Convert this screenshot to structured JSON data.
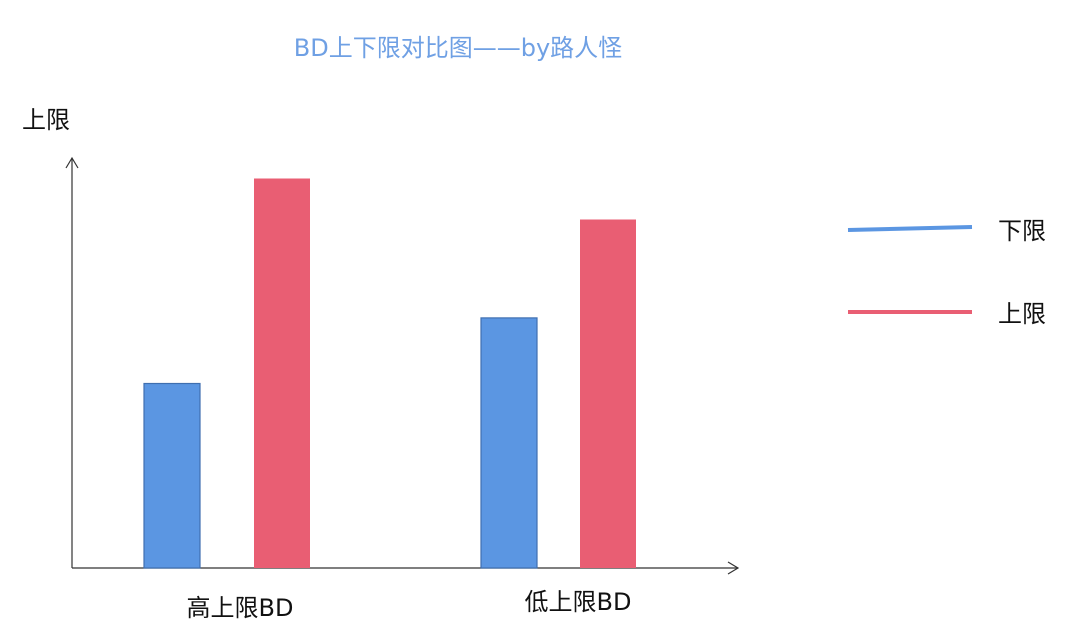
{
  "chart_data": {
    "type": "bar",
    "title": "BD上下限对比图——by路人怪",
    "xlabel": "",
    "ylabel": "上限",
    "categories": [
      "高上限BD",
      "低上限BD"
    ],
    "series": [
      {
        "name": "下限",
        "color": "#5b96e2",
        "values": [
          0.45,
          0.61
        ]
      },
      {
        "name": "上限",
        "color": "#e95e73",
        "values": [
          0.95,
          0.85
        ]
      }
    ],
    "ylim": [
      0,
      1
    ],
    "grid": false,
    "legend_position": "right",
    "title_color": "#6fa0e4",
    "axis_color": "#333333"
  }
}
